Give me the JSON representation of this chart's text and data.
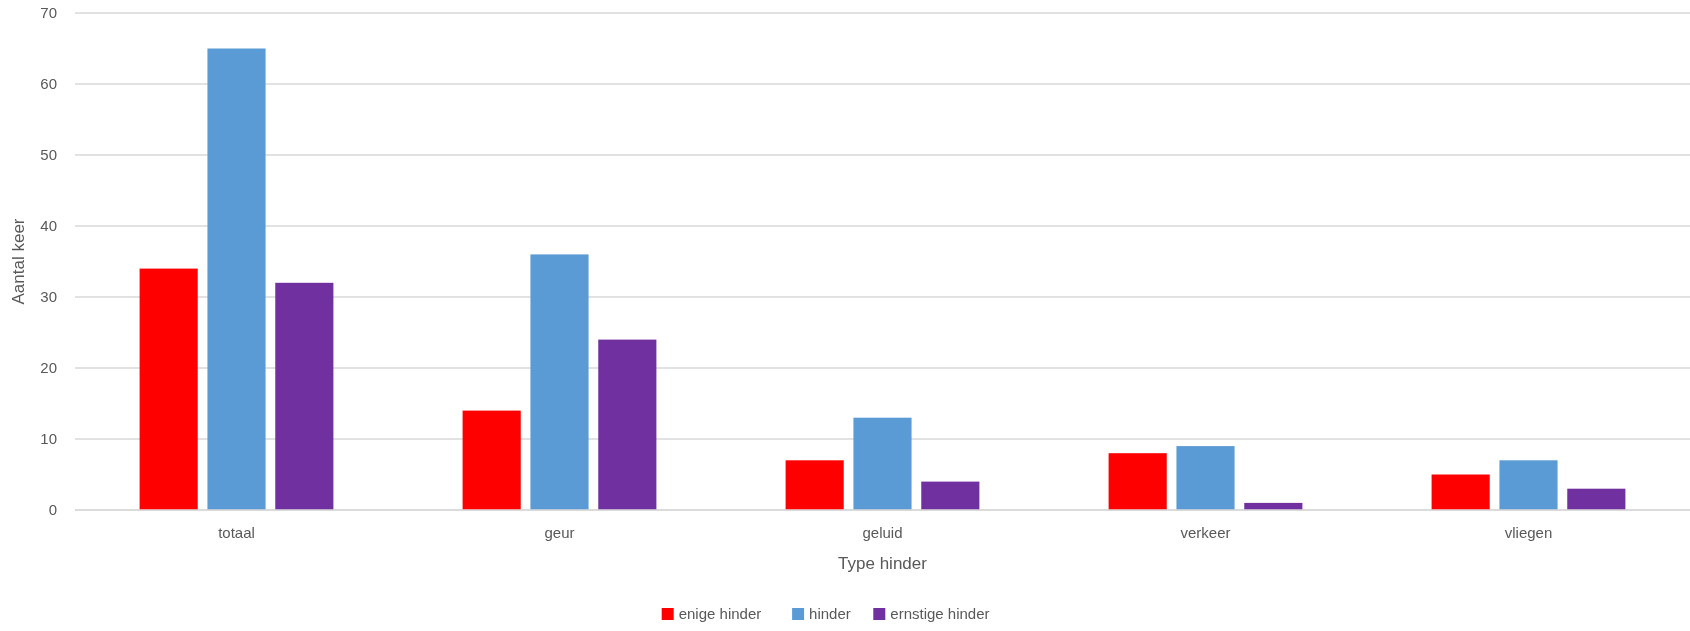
{
  "chart_data": {
    "type": "bar",
    "xlabel": "Type hinder",
    "ylabel": "Aantal keer",
    "categories": [
      "totaal",
      "geur",
      "geluid",
      "verkeer",
      "vliegen"
    ],
    "series": [
      {
        "name": "enige hinder",
        "color": "#ff0000",
        "values": [
          34,
          14,
          7,
          8,
          5
        ]
      },
      {
        "name": "hinder",
        "color": "#5b9bd5",
        "values": [
          65,
          36,
          13,
          9,
          7
        ]
      },
      {
        "name": "ernstige hinder",
        "color": "#7030a0",
        "values": [
          32,
          24,
          4,
          1,
          3
        ]
      }
    ],
    "ylim": [
      0,
      70
    ],
    "yticks": [
      0,
      10,
      20,
      30,
      40,
      50,
      60,
      70
    ],
    "grid": "y",
    "legend": "bottom"
  }
}
